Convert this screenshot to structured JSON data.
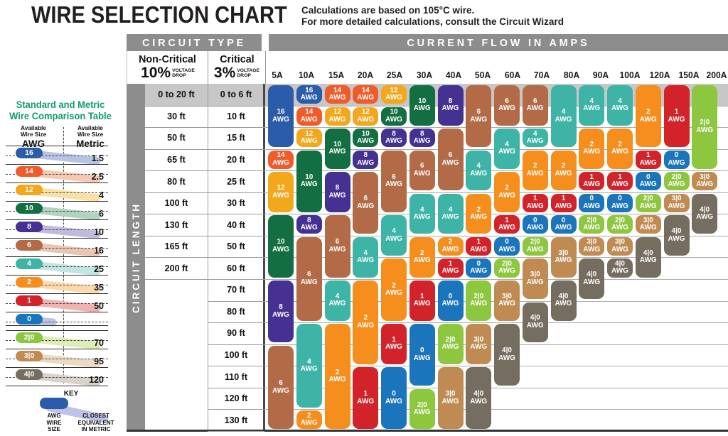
{
  "title": "WIRE SELECTION CHART",
  "subtitle": {
    "line1": "Calculations are based on 105°C wire.",
    "line2": "For more detailed calculations, consult the Circuit Wizard"
  },
  "sidebar": {
    "title_line1": "Standard and Metric",
    "title_line2": "Wire Comparison Table",
    "col_header": "Available\nWire Size",
    "awg_unit_label": "AWG",
    "metric_unit_label": "Metric",
    "rows": [
      {
        "awg": "16",
        "metric": "1.5"
      },
      {
        "awg": "14",
        "metric": "2.5"
      },
      {
        "awg": "12",
        "metric": "4"
      },
      {
        "awg": "10",
        "metric": "6"
      },
      {
        "awg": "8",
        "metric": "10"
      },
      {
        "awg": "6",
        "metric": "16"
      },
      {
        "awg": "4",
        "metric": "25"
      },
      {
        "awg": "2",
        "metric": "35"
      },
      {
        "awg": "1",
        "metric": "50"
      },
      {
        "awg": "0",
        "metric": ""
      },
      {
        "awg": "2|0",
        "metric": "70"
      },
      {
        "awg": "3|0",
        "metric": "95"
      },
      {
        "awg": "4|0",
        "metric": "120"
      }
    ],
    "band_tints": {
      "16": "#b7c3e3",
      "14": "#f7c9b2",
      "12": "#fbe0a6",
      "10": "#b2d4bd",
      "8": "#c1badd",
      "6": "#e7c6b3",
      "4": "#c3e5df",
      "2": "#fcd9ad",
      "1": "#f1b3af",
      "0": "#bcc3e4",
      "2|0": "#dcedb6",
      "3|0": "#ebd9c1",
      "4|0": "#d8d2c9"
    },
    "key": {
      "title": "KEY",
      "left_label": "AWG\nWIRE\nSIZE",
      "right_label": "CLOSEST\nEQUIVALENT\nIN METRIC"
    }
  },
  "chart": {
    "circuit_type_header": "CIRCUIT TYPE",
    "amps_header": "CURRENT FLOW IN AMPS",
    "circuit_length_label": "CIRCUIT LENGTH",
    "non_critical": {
      "name": "Non-Critical",
      "percent": "10%",
      "drop": "VOLTAGE\nDROP"
    },
    "critical": {
      "name": "Critical",
      "percent": "3%",
      "drop": "VOLTAGE\nDROP"
    }
  },
  "chart_data": {
    "type": "table",
    "title": "WIRE SELECTION CHART",
    "awg_unit": "AWG",
    "row_labels_non_critical": [
      "0 to 20 ft",
      "30 ft",
      "50 ft",
      "65 ft",
      "80 ft",
      "100 ft",
      "130 ft",
      "165 ft",
      "200 ft"
    ],
    "row_labels_critical": [
      "0 to 6 ft",
      "10 ft",
      "15 ft",
      "20 ft",
      "25 ft",
      "30 ft",
      "40 ft",
      "50 ft",
      "60 ft",
      "70 ft",
      "80 ft",
      "90 ft",
      "100 ft",
      "110 ft",
      "120 ft",
      "130 ft"
    ],
    "awg_colors": {
      "16": "#2a5caa",
      "14": "#f15a29",
      "12": "#f2a71c",
      "10": "#136f42",
      "8": "#453191",
      "6": "#b36a46",
      "4": "#3db4a6",
      "2": "#f68e1e",
      "1": "#d2232a",
      "0": "#1b75bc",
      "2|0": "#8dc63f",
      "3|0": "#bf8b52",
      "4|0": "#756d60"
    },
    "columns": [
      {
        "amps": "5A",
        "segments": [
          {
            "awg": "16",
            "span": 3
          },
          {
            "awg": "14",
            "span": 1
          },
          {
            "awg": "12",
            "span": 2
          },
          {
            "awg": "10",
            "span": 3
          },
          {
            "awg": "8",
            "span": 3
          },
          {
            "awg": "6",
            "span": 4
          }
        ]
      },
      {
        "amps": "10A",
        "segments": [
          {
            "awg": "16",
            "span": 1
          },
          {
            "awg": "14",
            "span": 1
          },
          {
            "awg": "12",
            "span": 1
          },
          {
            "awg": "10",
            "span": 3
          },
          {
            "awg": "8",
            "span": 1
          },
          {
            "awg": "6",
            "span": 4
          },
          {
            "awg": "4",
            "span": 4
          },
          {
            "awg": "2",
            "span": 1
          }
        ]
      },
      {
        "amps": "15A",
        "segments": [
          {
            "awg": "14",
            "span": 1
          },
          {
            "awg": "12",
            "span": 1
          },
          {
            "awg": "10",
            "span": 2
          },
          {
            "awg": "8",
            "span": 2
          },
          {
            "awg": "6",
            "span": 3
          },
          {
            "awg": "4",
            "span": 2
          },
          {
            "awg": "2",
            "span": 5
          }
        ]
      },
      {
        "amps": "20A",
        "segments": [
          {
            "awg": "14",
            "span": 1
          },
          {
            "awg": "12",
            "span": 1
          },
          {
            "awg": "10",
            "span": 1
          },
          {
            "awg": "8",
            "span": 1
          },
          {
            "awg": "6",
            "span": 3
          },
          {
            "awg": "4",
            "span": 2
          },
          {
            "awg": "2",
            "span": 4
          },
          {
            "awg": "1",
            "span": 3
          }
        ]
      },
      {
        "amps": "25A",
        "segments": [
          {
            "awg": "12",
            "span": 1
          },
          {
            "awg": "10",
            "span": 1
          },
          {
            "awg": "8",
            "span": 1
          },
          {
            "awg": "6",
            "span": 3
          },
          {
            "awg": "4",
            "span": 2
          },
          {
            "awg": "2",
            "span": 3
          },
          {
            "awg": "1",
            "span": 2
          },
          {
            "awg": "0",
            "span": 3
          }
        ]
      },
      {
        "amps": "30A",
        "segments": [
          {
            "awg": "10",
            "span": 2
          },
          {
            "awg": "8",
            "span": 1
          },
          {
            "awg": "6",
            "span": 2
          },
          {
            "awg": "4",
            "span": 2
          },
          {
            "awg": "2",
            "span": 2
          },
          {
            "awg": "1",
            "span": 2
          },
          {
            "awg": "0",
            "span": 3
          },
          {
            "awg": "2|0",
            "span": 2
          }
        ]
      },
      {
        "amps": "40A",
        "segments": [
          {
            "awg": "8",
            "span": 2
          },
          {
            "awg": "6",
            "span": 3
          },
          {
            "awg": "4",
            "span": 2
          },
          {
            "awg": "2",
            "span": 1
          },
          {
            "awg": "1",
            "span": 1
          },
          {
            "awg": "0",
            "span": 2
          },
          {
            "awg": "2|0",
            "span": 2
          },
          {
            "awg": "3|0",
            "span": 3
          }
        ]
      },
      {
        "amps": "50A",
        "segments": [
          {
            "awg": "6",
            "span": 3
          },
          {
            "awg": "4",
            "span": 2
          },
          {
            "awg": "2",
            "span": 2
          },
          {
            "awg": "1",
            "span": 1
          },
          {
            "awg": "0",
            "span": 1
          },
          {
            "awg": "2|0",
            "span": 2
          },
          {
            "awg": "3|0",
            "span": 2
          },
          {
            "awg": "4|0",
            "span": 3
          }
        ]
      },
      {
        "amps": "60A",
        "segments": [
          {
            "awg": "6",
            "span": 2
          },
          {
            "awg": "4",
            "span": 2
          },
          {
            "awg": "2",
            "span": 2
          },
          {
            "awg": "1",
            "span": 1
          },
          {
            "awg": "0",
            "span": 1
          },
          {
            "awg": "2|0",
            "span": 1
          },
          {
            "awg": "3|0",
            "span": 2
          },
          {
            "awg": "4|0",
            "span": 3
          }
        ]
      },
      {
        "amps": "70A",
        "segments": [
          {
            "awg": "6",
            "span": 2
          },
          {
            "awg": "4",
            "span": 1
          },
          {
            "awg": "2",
            "span": 2
          },
          {
            "awg": "1",
            "span": 1
          },
          {
            "awg": "0",
            "span": 1
          },
          {
            "awg": "2|0",
            "span": 1
          },
          {
            "awg": "3|0",
            "span": 2
          },
          {
            "awg": "4|0",
            "span": 2
          }
        ]
      },
      {
        "amps": "80A",
        "segments": [
          {
            "awg": "4",
            "span": 3
          },
          {
            "awg": "2",
            "span": 2
          },
          {
            "awg": "1",
            "span": 1
          },
          {
            "awg": "0",
            "span": 1
          },
          {
            "awg": "3|0",
            "span": 2
          },
          {
            "awg": "4|0",
            "span": 2
          }
        ]
      },
      {
        "amps": "90A",
        "segments": [
          {
            "awg": "4",
            "span": 2
          },
          {
            "awg": "2",
            "span": 2
          },
          {
            "awg": "1",
            "span": 1
          },
          {
            "awg": "0",
            "span": 1
          },
          {
            "awg": "2|0",
            "span": 1
          },
          {
            "awg": "3|0",
            "span": 1
          },
          {
            "awg": "4|0",
            "span": 2
          }
        ]
      },
      {
        "amps": "100A",
        "segments": [
          {
            "awg": "4",
            "span": 2
          },
          {
            "awg": "2",
            "span": 2
          },
          {
            "awg": "1",
            "span": 1
          },
          {
            "awg": "0",
            "span": 1
          },
          {
            "awg": "2|0",
            "span": 1
          },
          {
            "awg": "3|0",
            "span": 1
          },
          {
            "awg": "4|0",
            "span": 1
          }
        ]
      },
      {
        "amps": "120A",
        "segments": [
          {
            "awg": "2",
            "span": 3
          },
          {
            "awg": "1",
            "span": 1
          },
          {
            "awg": "0",
            "span": 1
          },
          {
            "awg": "2|0",
            "span": 1
          },
          {
            "awg": "3|0",
            "span": 1
          },
          {
            "awg": "4|0",
            "span": 2
          }
        ]
      },
      {
        "amps": "150A",
        "segments": [
          {
            "awg": "1",
            "span": 3
          },
          {
            "awg": "0",
            "span": 1
          },
          {
            "awg": "2|0",
            "span": 1
          },
          {
            "awg": "3|0",
            "span": 1
          },
          {
            "awg": "4|0",
            "span": 2
          }
        ]
      },
      {
        "amps": "200A",
        "segments": [
          {
            "awg": "2|0",
            "span": 4
          },
          {
            "awg": "3|0",
            "span": 1
          },
          {
            "awg": "4|0",
            "span": 2
          }
        ]
      }
    ]
  }
}
